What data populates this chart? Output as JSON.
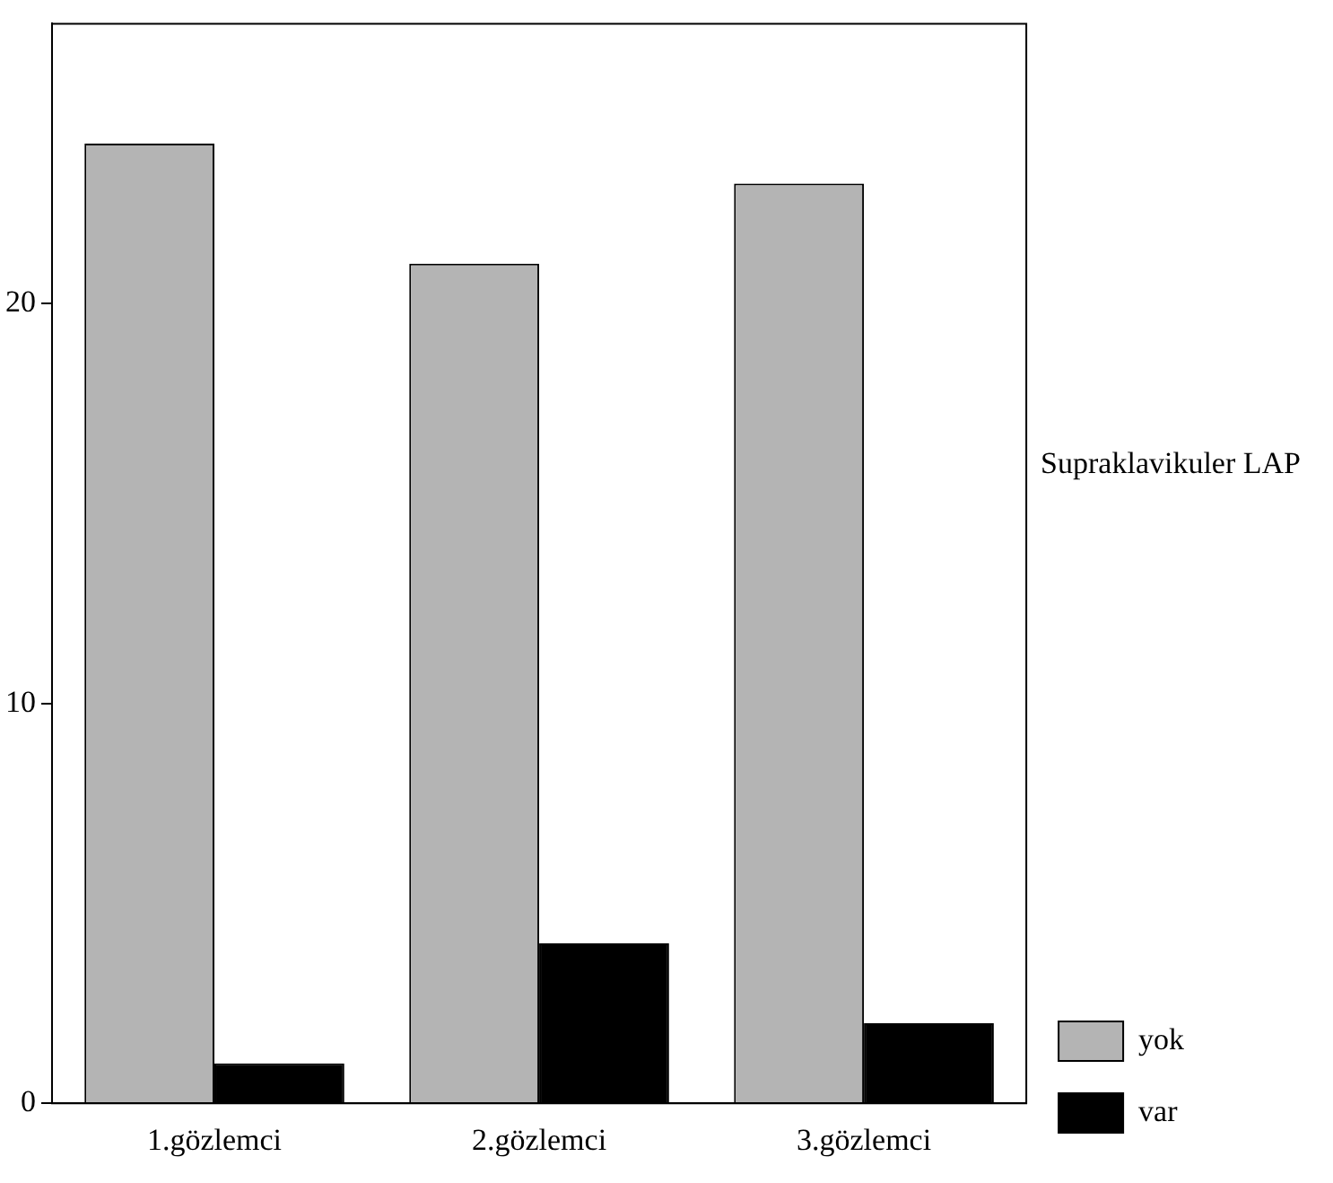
{
  "chart_data": {
    "type": "bar",
    "categories": [
      "1.gözlemci",
      "2.gözlemci",
      "3.gözlemci"
    ],
    "series": [
      {
        "name": "yok",
        "color": "#b4b4b4",
        "values": [
          24,
          21,
          23
        ]
      },
      {
        "name": "var",
        "color": "#000000",
        "values": [
          1,
          4,
          2
        ]
      }
    ],
    "legend_title": "Supraklavikuler LAP",
    "legend": "bottom right",
    "ylim": [
      0,
      27
    ],
    "yticks": [
      0,
      10,
      20
    ],
    "grid": false
  }
}
